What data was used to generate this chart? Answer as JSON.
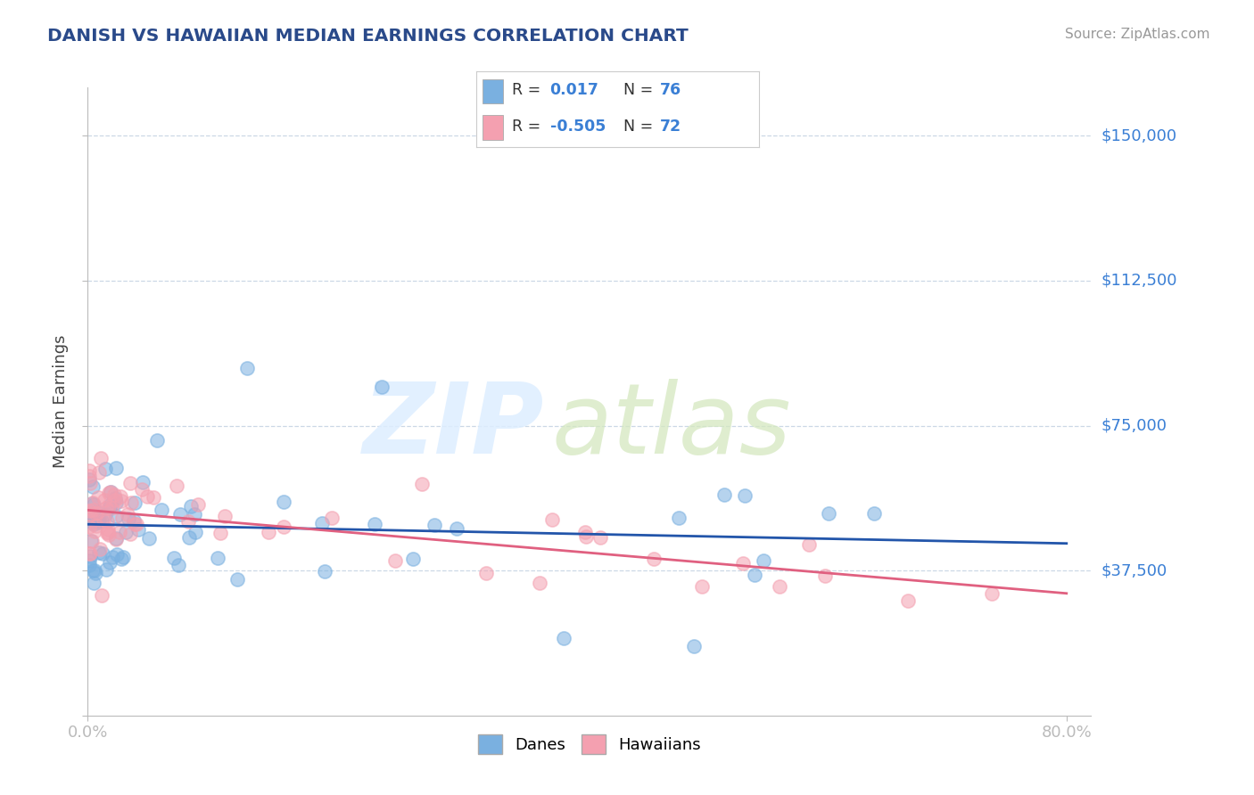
{
  "title": "DANISH VS HAWAIIAN MEDIAN EARNINGS CORRELATION CHART",
  "source": "Source: ZipAtlas.com",
  "ylabel_label": "Median Earnings",
  "xlim": [
    0.0,
    0.82
  ],
  "ylim": [
    0,
    162500
  ],
  "yticks": [
    0,
    37500,
    75000,
    112500,
    150000
  ],
  "ytick_labels": [
    "",
    "$37,500",
    "$75,000",
    "$112,500",
    "$150,000"
  ],
  "xticks": [
    0.0,
    0.8
  ],
  "xtick_labels": [
    "0.0%",
    "80.0%"
  ],
  "title_color": "#2a4a8a",
  "axis_color": "#3a7fd5",
  "danes_color": "#7ab0e0",
  "hawaiians_color": "#f4a0b0",
  "danes_r": 0.017,
  "danes_n": 76,
  "hawaiians_r": -0.505,
  "hawaiians_n": 72,
  "danes_line_color": "#2255aa",
  "hawaiians_line_color": "#e06080",
  "bg_color": "#ffffff",
  "grid_color": "#c0cfe0",
  "watermark_zip_color": "#dde8f5",
  "watermark_atlas_color": "#d0dfc0"
}
